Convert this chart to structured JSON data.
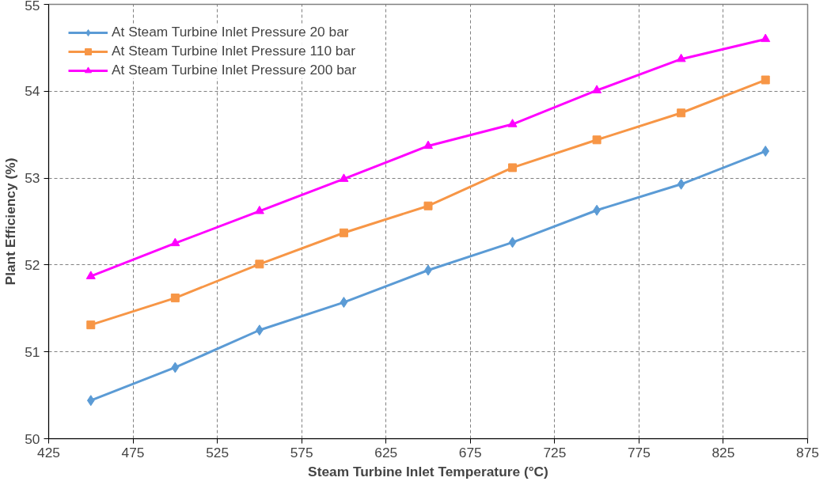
{
  "chart_data": {
    "type": "line",
    "xlabel": "Steam Turbine Inlet Temperature (°C)",
    "ylabel": "Plant Efficiency (%)",
    "x": [
      450,
      500,
      550,
      600,
      650,
      700,
      750,
      800,
      850
    ],
    "series": [
      {
        "name": "At Steam Turbine Inlet Pressure 20 bar",
        "color": "#5b9bd5",
        "marker": "diamond",
        "values": [
          50.44,
          50.82,
          51.25,
          51.57,
          51.94,
          52.26,
          52.63,
          52.93,
          53.31
        ]
      },
      {
        "name": "At Steam Turbine Inlet Pressure 110 bar",
        "color": "#f79646",
        "marker": "square",
        "values": [
          51.31,
          51.62,
          52.01,
          52.37,
          52.68,
          53.12,
          53.44,
          53.75,
          54.13
        ]
      },
      {
        "name": "At Steam Turbine Inlet Pressure 200 bar",
        "color": "#ff00ff",
        "marker": "triangle",
        "values": [
          51.87,
          52.25,
          52.62,
          52.99,
          53.37,
          53.62,
          54.01,
          54.37,
          54.6
        ]
      }
    ],
    "xlim": [
      425,
      875
    ],
    "xticks": [
      425,
      475,
      525,
      575,
      625,
      675,
      725,
      775,
      825,
      875
    ],
    "ylim": [
      50,
      55
    ],
    "yticks": [
      50,
      51,
      52,
      53,
      54,
      55
    ],
    "grid": true,
    "legend": "top left",
    "line_style": "solid"
  }
}
